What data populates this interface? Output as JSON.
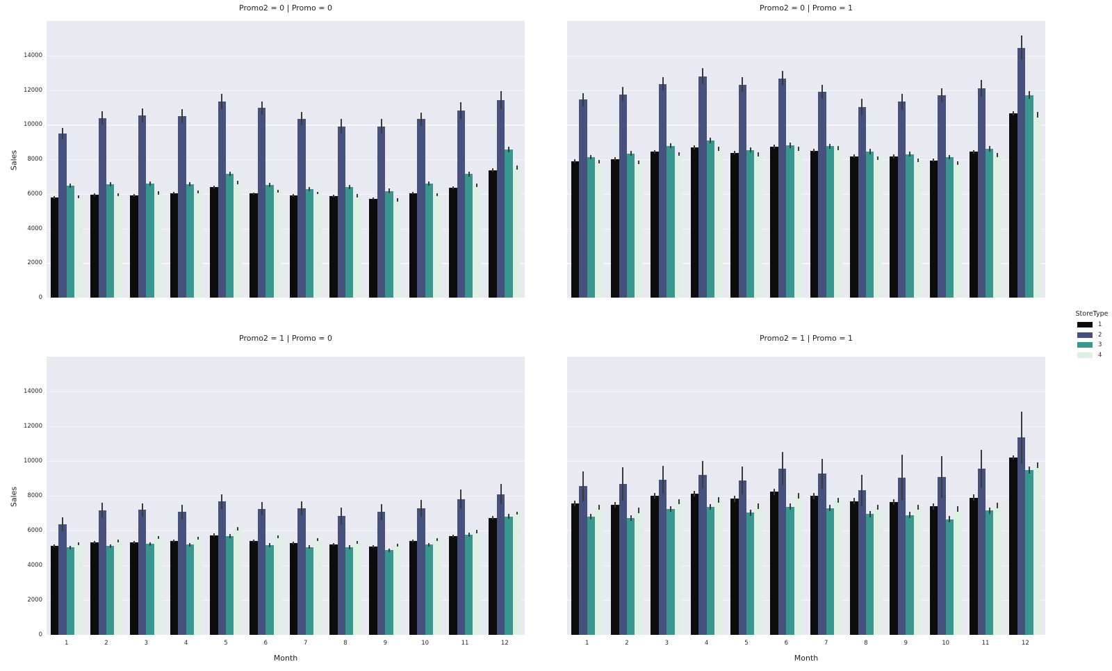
{
  "figure": {
    "ylabel": "Sales",
    "xlabel": "Month",
    "plot_background": "#e9e9f1",
    "grid_color": "#f7f7fa",
    "error_bar_color": "#3a3a3a",
    "yticks": [
      0,
      2000,
      4000,
      6000,
      8000,
      10000,
      12000,
      14000
    ],
    "ylim": [
      0,
      16000
    ],
    "categories": [
      "1",
      "2",
      "3",
      "4",
      "5",
      "6",
      "7",
      "8",
      "9",
      "10",
      "11",
      "12"
    ],
    "legend": {
      "title": "StoreType",
      "entries": [
        {
          "label": "1",
          "color": "#0c0c0c"
        },
        {
          "label": "2",
          "color": "#47517e"
        },
        {
          "label": "3",
          "color": "#399790"
        },
        {
          "label": "4",
          "color": "#ddf0e3"
        }
      ]
    }
  },
  "chart_data": [
    {
      "type": "bar",
      "title": "Promo2 = 0 | Promo = 0",
      "xlabel": "Month",
      "ylabel": "Sales",
      "ylim": [
        0,
        16000
      ],
      "categories": [
        "1",
        "2",
        "3",
        "4",
        "5",
        "6",
        "7",
        "8",
        "9",
        "10",
        "11",
        "12"
      ],
      "series": [
        {
          "name": "1",
          "color": "#0c0c0c",
          "values": [
            5780,
            5950,
            5900,
            6050,
            6400,
            6020,
            5900,
            5870,
            5720,
            6050,
            6350,
            7370
          ],
          "errors": [
            70,
            70,
            70,
            70,
            80,
            70,
            70,
            70,
            70,
            70,
            80,
            90
          ]
        },
        {
          "name": "2",
          "color": "#47517e",
          "values": [
            9480,
            10380,
            10550,
            10500,
            11330,
            10960,
            10350,
            9900,
            9900,
            10320,
            10800,
            11420
          ],
          "errors": [
            330,
            380,
            400,
            390,
            450,
            380,
            390,
            430,
            420,
            380,
            480,
            520
          ]
        },
        {
          "name": "3",
          "color": "#399790",
          "values": [
            6470,
            6560,
            6600,
            6570,
            7160,
            6530,
            6290,
            6390,
            6170,
            6610,
            7150,
            8550
          ],
          "errors": [
            110,
            120,
            120,
            120,
            130,
            120,
            120,
            130,
            130,
            120,
            140,
            160
          ]
        },
        {
          "name": "4",
          "color": "#ddf0e3",
          "values": [
            5840,
            5950,
            6050,
            6100,
            6650,
            6140,
            6050,
            5890,
            5650,
            5940,
            6480,
            7530
          ],
          "errors": [
            80,
            80,
            90,
            80,
            90,
            80,
            80,
            90,
            90,
            80,
            100,
            120
          ]
        }
      ]
    },
    {
      "type": "bar",
      "title": "Promo2 = 0 | Promo = 1",
      "xlabel": "Month",
      "ylabel": "Sales",
      "ylim": [
        0,
        16000
      ],
      "categories": [
        "1",
        "2",
        "3",
        "4",
        "5",
        "6",
        "7",
        "8",
        "9",
        "10",
        "11",
        "12"
      ],
      "series": [
        {
          "name": "1",
          "color": "#0c0c0c",
          "values": [
            7900,
            8010,
            8430,
            8680,
            8380,
            8720,
            8500,
            8180,
            8170,
            7930,
            8430,
            10650
          ],
          "errors": [
            110,
            110,
            110,
            120,
            110,
            120,
            110,
            110,
            110,
            100,
            110,
            130
          ]
        },
        {
          "name": "2",
          "color": "#47517e",
          "values": [
            11450,
            11750,
            12350,
            12800,
            12320,
            12680,
            11900,
            11000,
            11320,
            11700,
            12100,
            14450
          ],
          "errors": [
            380,
            420,
            380,
            450,
            420,
            430,
            420,
            480,
            450,
            400,
            480,
            700
          ]
        },
        {
          "name": "3",
          "color": "#399790",
          "values": [
            8120,
            8340,
            8780,
            9100,
            8540,
            8800,
            8750,
            8440,
            8300,
            8120,
            8620,
            11700
          ],
          "errors": [
            140,
            150,
            150,
            160,
            150,
            150,
            150,
            160,
            150,
            140,
            160,
            220
          ]
        },
        {
          "name": "4",
          "color": "#ddf0e3",
          "values": [
            7850,
            7820,
            8310,
            8620,
            8290,
            8610,
            8640,
            8060,
            7950,
            7780,
            8260,
            10580
          ],
          "errors": [
            100,
            110,
            110,
            120,
            110,
            110,
            110,
            120,
            110,
            100,
            120,
            160
          ]
        }
      ]
    },
    {
      "type": "bar",
      "title": "Promo2 = 1 | Promo = 0",
      "xlabel": "Month",
      "ylabel": "Sales",
      "ylim": [
        0,
        16000
      ],
      "categories": [
        "1",
        "2",
        "3",
        "4",
        "5",
        "6",
        "7",
        "8",
        "9",
        "10",
        "11",
        "12"
      ],
      "series": [
        {
          "name": "1",
          "color": "#0c0c0c",
          "values": [
            5140,
            5310,
            5320,
            5420,
            5740,
            5420,
            5290,
            5190,
            5090,
            5420,
            5690,
            6740
          ],
          "errors": [
            80,
            80,
            80,
            80,
            90,
            80,
            80,
            80,
            80,
            80,
            90,
            100
          ]
        },
        {
          "name": "2",
          "color": "#47517e",
          "values": [
            6350,
            7170,
            7200,
            7080,
            7670,
            7250,
            7280,
            6840,
            7070,
            7270,
            7820,
            8100
          ],
          "errors": [
            400,
            450,
            380,
            420,
            430,
            380,
            400,
            470,
            450,
            480,
            550,
            580
          ]
        },
        {
          "name": "3",
          "color": "#399790",
          "values": [
            5040,
            5110,
            5230,
            5190,
            5670,
            5160,
            5060,
            5040,
            4870,
            5190,
            5770,
            6810
          ],
          "errors": [
            100,
            110,
            110,
            110,
            120,
            110,
            110,
            110,
            110,
            110,
            130,
            140
          ]
        },
        {
          "name": "4",
          "color": "#ddf0e3",
          "values": [
            5240,
            5420,
            5600,
            5550,
            6110,
            5640,
            5490,
            5320,
            5170,
            5470,
            5940,
            7010
          ],
          "errors": [
            80,
            80,
            80,
            80,
            90,
            80,
            80,
            80,
            90,
            80,
            100,
            90
          ]
        }
      ]
    },
    {
      "type": "bar",
      "title": "Promo2 = 1 | Promo = 1",
      "xlabel": "Month",
      "ylabel": "Sales",
      "ylim": [
        0,
        16000
      ],
      "categories": [
        "1",
        "2",
        "3",
        "4",
        "5",
        "6",
        "7",
        "8",
        "9",
        "10",
        "11",
        "12"
      ],
      "series": [
        {
          "name": "1",
          "color": "#0c0c0c",
          "values": [
            7570,
            7490,
            8010,
            8130,
            7830,
            8230,
            7990,
            7690,
            7640,
            7390,
            7890,
            10200
          ],
          "errors": [
            160,
            170,
            170,
            170,
            170,
            170,
            170,
            180,
            170,
            170,
            180,
            120
          ]
        },
        {
          "name": "2",
          "color": "#47517e",
          "values": [
            8550,
            8680,
            8930,
            9220,
            8900,
            9560,
            9270,
            8310,
            9050,
            9100,
            9560,
            11360
          ],
          "errors": [
            870,
            950,
            800,
            780,
            800,
            950,
            850,
            900,
            1300,
            1200,
            1100,
            1500
          ]
        },
        {
          "name": "3",
          "color": "#399790",
          "values": [
            6800,
            6730,
            7250,
            7370,
            7030,
            7380,
            7300,
            6950,
            6900,
            6650,
            7150,
            9500
          ],
          "errors": [
            160,
            170,
            170,
            170,
            170,
            180,
            170,
            180,
            170,
            180,
            180,
            200
          ]
        },
        {
          "name": "4",
          "color": "#ddf0e3",
          "values": [
            7350,
            7170,
            7660,
            7770,
            7410,
            7990,
            7740,
            7340,
            7340,
            7240,
            7440,
            9760
          ],
          "errors": [
            140,
            150,
            150,
            150,
            150,
            160,
            150,
            150,
            150,
            160,
            160,
            170
          ]
        }
      ]
    }
  ]
}
